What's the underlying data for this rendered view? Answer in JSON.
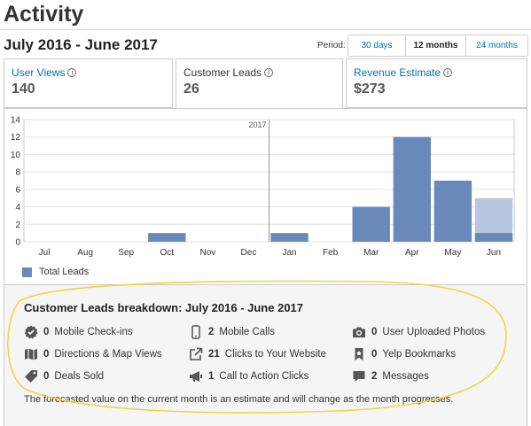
{
  "page_title": "Activity",
  "range_title": "July 2016 - June 2017",
  "period": {
    "label": "Period:",
    "options": [
      "30 days",
      "12 months",
      "24 months"
    ],
    "selected": "12 months"
  },
  "tabs": [
    {
      "label": "User Views",
      "value": "140",
      "selected": false
    },
    {
      "label": "Customer Leads",
      "value": "26",
      "selected": true
    },
    {
      "label": "Revenue Estimate",
      "value": "$273",
      "selected": false
    }
  ],
  "chart_data": {
    "type": "bar",
    "categories": [
      "Jul",
      "Aug",
      "Sep",
      "Oct",
      "Nov",
      "Dec",
      "Jan",
      "Feb",
      "Mar",
      "Apr",
      "May",
      "Jun"
    ],
    "series": [
      {
        "name": "Total Leads",
        "values": [
          0,
          0,
          0,
          1,
          0,
          0,
          1,
          0,
          4,
          12,
          7,
          1
        ]
      }
    ],
    "forecast": {
      "category": "Jun",
      "value": 5
    },
    "year_marker": {
      "label": "2017",
      "before_category": "Jan"
    },
    "ylim": [
      0,
      14
    ],
    "yticks": [
      0,
      2,
      4,
      6,
      8,
      10,
      12,
      14
    ],
    "grid": true,
    "legend": "bottom-left",
    "colors": {
      "bar": "#6a89bb",
      "forecast": "#b8c7e0"
    }
  },
  "breakdown": {
    "title": "Customer Leads breakdown: July 2016 - June 2017",
    "items": [
      {
        "num": "0",
        "label": "Mobile Check-ins",
        "icon": "check-badge-icon"
      },
      {
        "num": "0",
        "label": "Directions & Map Views",
        "icon": "map-icon"
      },
      {
        "num": "0",
        "label": "Deals Sold",
        "icon": "tag-icon"
      },
      {
        "num": "2",
        "label": "Mobile Calls",
        "icon": "phone-icon"
      },
      {
        "num": "21",
        "label": "Clicks to Your Website",
        "icon": "external-link-icon"
      },
      {
        "num": "1",
        "label": "Call to Action Clicks",
        "icon": "megaphone-icon"
      },
      {
        "num": "0",
        "label": "User Uploaded Photos",
        "icon": "camera-icon"
      },
      {
        "num": "0",
        "label": "Yelp Bookmarks",
        "icon": "bookmark-icon"
      },
      {
        "num": "2",
        "label": "Messages",
        "icon": "message-icon"
      }
    ],
    "footnote": "The forecasted value on the current month is an estimate and will change as the month progresses."
  }
}
